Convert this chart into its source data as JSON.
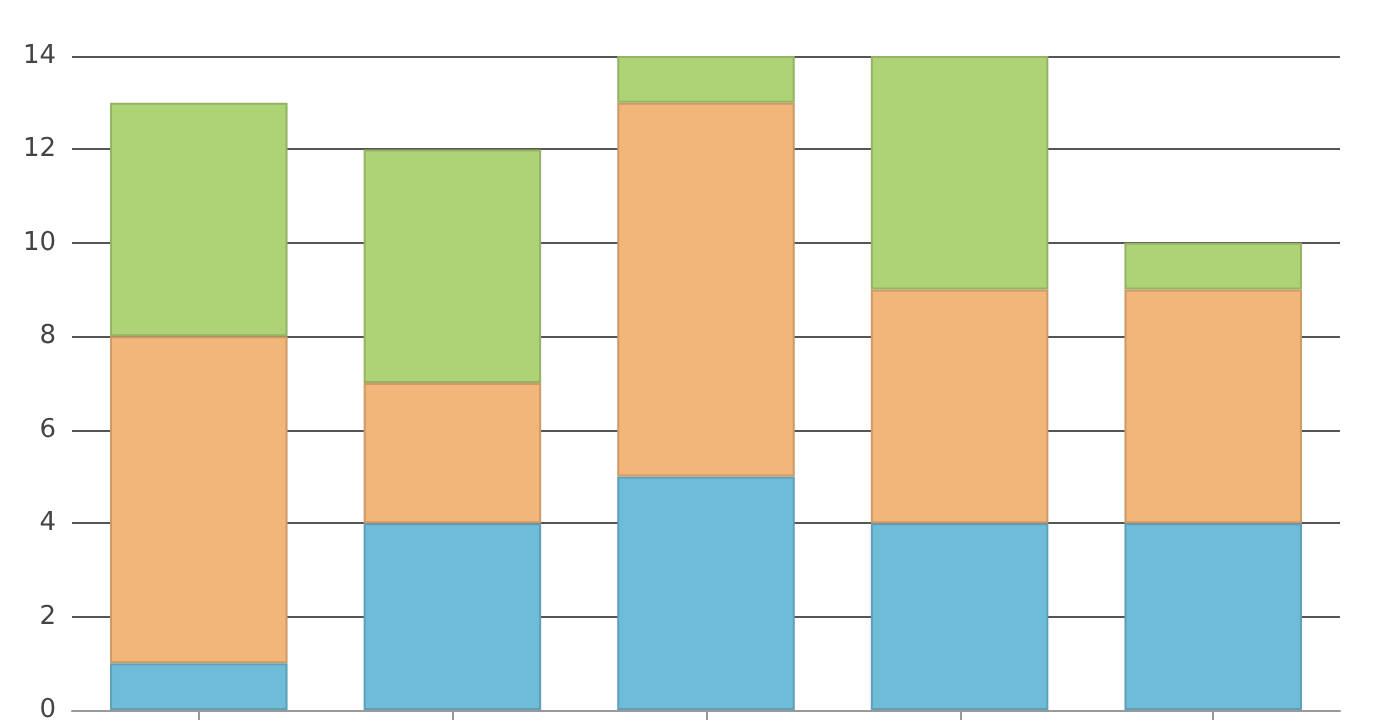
{
  "chart_data": {
    "type": "bar",
    "stacked": true,
    "categories": [
      null,
      null,
      null,
      null,
      null
    ],
    "series": [
      {
        "color": "#6fbcd8",
        "values": [
          1,
          4,
          5,
          4,
          4
        ]
      },
      {
        "color": "#f2b57a",
        "values": [
          7,
          3,
          8,
          5,
          5
        ]
      },
      {
        "color": "#aed276",
        "values": [
          5,
          5,
          1,
          5,
          1
        ]
      }
    ],
    "ylim": [
      0,
      14
    ],
    "yticks": [
      0,
      2,
      4,
      6,
      8,
      10,
      12,
      14
    ],
    "grid": "y"
  }
}
